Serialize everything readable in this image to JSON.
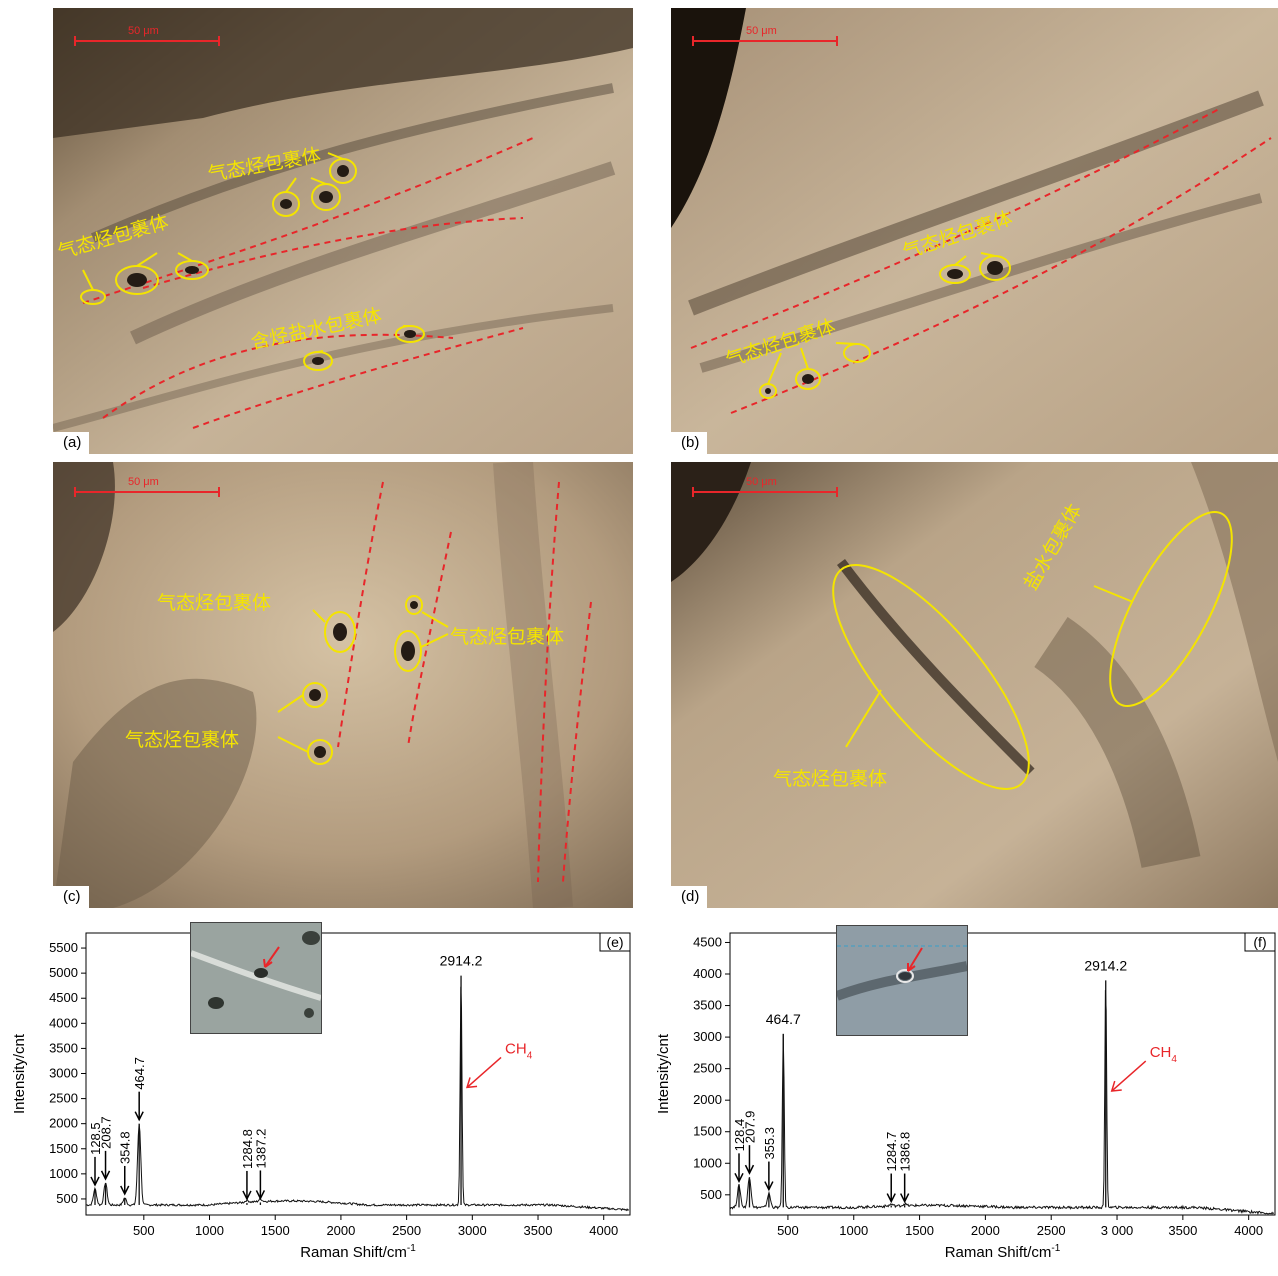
{
  "panels": [
    {
      "id": "a",
      "label": "(a)",
      "scale": "50 μm",
      "annotations": [
        "气态烃包裹体",
        "气态烃包裹体",
        "含烃盐水包裹体"
      ]
    },
    {
      "id": "b",
      "label": "(b)",
      "scale": "50 μm",
      "annotations": [
        "气态烃包裹体",
        "气态烃包裹体"
      ]
    },
    {
      "id": "c",
      "label": "(c)",
      "scale": "50 μm",
      "annotations": [
        "气态烃包裹体",
        "气态烃包裹体",
        "气态烃包裹体"
      ]
    },
    {
      "id": "d",
      "label": "(d)",
      "scale": "50 μm",
      "annotations": [
        "盐水包裹体",
        "气态烃包裹体"
      ]
    }
  ],
  "colors": {
    "annotation": "#f4e400",
    "trend_line": "#e8262a",
    "scale_bar": "#e8262a",
    "ch4_label": "#e8262a"
  },
  "chart_data": [
    {
      "type": "line",
      "panel_tag": "(e)",
      "xlabel": "Raman Shift/cm",
      "xlabel_sup": "-1",
      "ylabel": "Intensity/cnt",
      "xlim": [
        60,
        4200
      ],
      "ylim": [
        180,
        5800
      ],
      "x_ticks": [
        "500",
        "1000",
        "1500",
        "2000",
        "2500",
        "3000",
        "3500",
        "4000"
      ],
      "y_ticks": [
        "500",
        "1000",
        "1500",
        "2000",
        "2500",
        "3000",
        "3500",
        "4000",
        "4500",
        "5000",
        "5500"
      ],
      "baseline": 380,
      "peaks": [
        {
          "x": 128.5,
          "y": 700,
          "label": "128.5"
        },
        {
          "x": 208.7,
          "y": 820,
          "label": "208.7"
        },
        {
          "x": 354.8,
          "y": 520,
          "label": "354.8"
        },
        {
          "x": 464.7,
          "y": 2000,
          "label": "464.7"
        },
        {
          "x": 1284.8,
          "y": 420,
          "label": "1284.8"
        },
        {
          "x": 1387.2,
          "y": 430,
          "label": "1387.2"
        },
        {
          "x": 2914.2,
          "y": 4950,
          "label": "2914.2"
        }
      ],
      "species_label": "CH",
      "species_sub": "4"
    },
    {
      "type": "line",
      "panel_tag": "(f)",
      "xlabel": "Raman Shift/cm",
      "xlabel_sup": "-1",
      "ylabel": "Intensity/cnt",
      "xlim": [
        60,
        4200
      ],
      "ylim": [
        180,
        4650
      ],
      "x_ticks": [
        "500",
        "1000",
        "1500",
        "2000",
        "2500",
        "3 000",
        "3500",
        "4000"
      ],
      "y_ticks": [
        "500",
        "1000",
        "1500",
        "2000",
        "2500",
        "3000",
        "3500",
        "4000",
        "4500"
      ],
      "baseline": 300,
      "peaks": [
        {
          "x": 128.4,
          "y": 650,
          "label": "128.4"
        },
        {
          "x": 207.9,
          "y": 780,
          "label": "207.9"
        },
        {
          "x": 355.3,
          "y": 520,
          "label": "355.3"
        },
        {
          "x": 464.7,
          "y": 3050,
          "label": "464.7"
        },
        {
          "x": 1284.7,
          "y": 330,
          "label": "1284.7"
        },
        {
          "x": 1386.8,
          "y": 330,
          "label": "1386.8"
        },
        {
          "x": 2914.2,
          "y": 3900,
          "label": "2914.2"
        }
      ],
      "species_label": "CH",
      "species_sub": "4"
    }
  ]
}
